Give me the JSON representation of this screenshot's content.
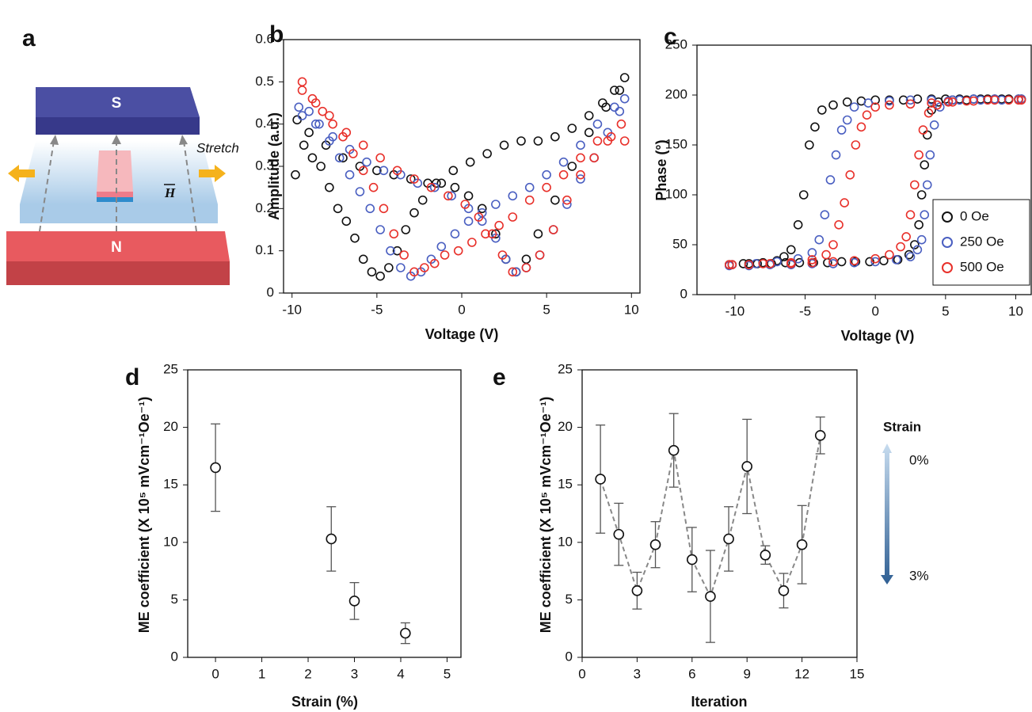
{
  "diagram": {
    "panel_label": "a",
    "labels": [
      "S",
      "N",
      "Stretch",
      "H"
    ]
  },
  "chart_data": [
    {
      "type": "scatter",
      "panel_label": "b",
      "x_label": "Voltage (V)",
      "y_label": "Amplitude (a.u.)",
      "xlim": [
        -10.5,
        10.5
      ],
      "xticks": [
        -10,
        -5,
        0,
        5,
        10
      ],
      "ylim": [
        0,
        0.6
      ],
      "yticks": [
        0,
        0.1,
        0.2,
        0.3,
        0.4,
        0.5,
        0.6
      ],
      "grid": false,
      "series": [
        {
          "color": "#111111",
          "x": [
            -9.8,
            -9.3,
            -8.8,
            -8.3,
            -7.8,
            -7.3,
            -6.8,
            -6.3,
            -5.8,
            -5.3,
            -4.8,
            -4.3,
            -3.8,
            -3.3,
            -2.8,
            -2.3,
            -1.5,
            -0.5,
            0.5,
            1.5,
            2.5,
            3.5,
            4.5,
            5.5,
            6.5,
            7.5,
            8.3,
            9.0,
            9.6,
            9.3,
            8.5,
            7.5,
            6.5,
            5.5,
            4.5,
            3.8,
            3.2,
            2.6,
            2.0,
            1.2,
            0.4,
            -0.4,
            -1.2,
            -2.0,
            -3.0,
            -4.0,
            -5.0,
            -6.0,
            -7.0,
            -8.0,
            -9.0,
            -9.7
          ],
          "values": [
            0.28,
            0.35,
            0.32,
            0.3,
            0.25,
            0.2,
            0.17,
            0.13,
            0.08,
            0.05,
            0.04,
            0.06,
            0.1,
            0.15,
            0.19,
            0.22,
            0.26,
            0.29,
            0.31,
            0.33,
            0.35,
            0.36,
            0.36,
            0.37,
            0.39,
            0.42,
            0.45,
            0.48,
            0.51,
            0.48,
            0.44,
            0.38,
            0.3,
            0.22,
            0.14,
            0.08,
            0.05,
            0.08,
            0.14,
            0.2,
            0.23,
            0.25,
            0.26,
            0.26,
            0.27,
            0.28,
            0.29,
            0.3,
            0.32,
            0.35,
            0.38,
            0.41
          ]
        },
        {
          "color": "#4a5fc1",
          "x": [
            -9.6,
            -9,
            -8.4,
            -7.8,
            -7.2,
            -6.6,
            -6,
            -5.4,
            -4.8,
            -4.2,
            -3.6,
            -3,
            -2.4,
            -1.8,
            -1.2,
            -0.4,
            0.4,
            1.2,
            2,
            3,
            4,
            5,
            6,
            7,
            8,
            9,
            9.6,
            9.3,
            8.6,
            7.8,
            7,
            6.2,
            5.4,
            4.6,
            3.8,
            3.2,
            2.6,
            2,
            1.2,
            0.4,
            -0.6,
            -1.6,
            -2.6,
            -3.6,
            -4.6,
            -5.6,
            -6.6,
            -7.6,
            -8.6,
            -9.4
          ],
          "values": [
            0.44,
            0.43,
            0.4,
            0.36,
            0.32,
            0.28,
            0.24,
            0.2,
            0.15,
            0.1,
            0.06,
            0.04,
            0.05,
            0.08,
            0.11,
            0.14,
            0.17,
            0.19,
            0.21,
            0.23,
            0.25,
            0.28,
            0.31,
            0.35,
            0.4,
            0.44,
            0.46,
            0.43,
            0.38,
            0.32,
            0.27,
            0.21,
            0.15,
            0.09,
            0.06,
            0.05,
            0.08,
            0.13,
            0.17,
            0.2,
            0.23,
            0.25,
            0.26,
            0.28,
            0.29,
            0.31,
            0.34,
            0.37,
            0.4,
            0.42
          ]
        },
        {
          "color": "#e8302a",
          "x": [
            -9.4,
            -8.8,
            -8.2,
            -7.6,
            -7,
            -6.4,
            -5.8,
            -5.2,
            -4.6,
            -4,
            -3.4,
            -2.8,
            -2.2,
            -1.6,
            -1,
            -0.2,
            0.6,
            1.4,
            2.2,
            3,
            4,
            5,
            6,
            7,
            8,
            8.8,
            9.6,
            9.4,
            8.6,
            7.8,
            7,
            6.2,
            5.4,
            4.6,
            3.8,
            3,
            2.4,
            1.8,
            1,
            0.2,
            -0.8,
            -1.8,
            -2.8,
            -3.8,
            -4.8,
            -5.8,
            -6.8,
            -7.8,
            -8.6,
            -9.4
          ],
          "values": [
            0.5,
            0.46,
            0.43,
            0.4,
            0.37,
            0.33,
            0.29,
            0.25,
            0.2,
            0.14,
            0.09,
            0.05,
            0.06,
            0.07,
            0.09,
            0.1,
            0.12,
            0.14,
            0.16,
            0.18,
            0.22,
            0.25,
            0.28,
            0.32,
            0.36,
            0.37,
            0.36,
            0.4,
            0.36,
            0.32,
            0.28,
            0.22,
            0.15,
            0.09,
            0.06,
            0.05,
            0.09,
            0.14,
            0.18,
            0.21,
            0.23,
            0.25,
            0.27,
            0.29,
            0.32,
            0.35,
            0.38,
            0.42,
            0.45,
            0.48
          ]
        }
      ]
    },
    {
      "type": "scatter",
      "panel_label": "c",
      "x_label": "Voltage (V)",
      "y_label": "Phase (°)",
      "legend": "lower right",
      "xlim": [
        -12.7,
        11.1
      ],
      "xticks": [
        -10,
        -5,
        0,
        5,
        10
      ],
      "ylim": [
        0,
        250
      ],
      "yticks": [
        0,
        50,
        100,
        150,
        200,
        250
      ],
      "grid": false,
      "series": [
        {
          "name": "0 Oe",
          "color": "#111111",
          "x": [
            -10.4,
            -9.4,
            -8.4,
            -7.4,
            -6.4,
            -5.4,
            -4.4,
            -3.4,
            -2.4,
            -1.4,
            -0.4,
            0.6,
            1.6,
            2.4,
            2.8,
            3.1,
            3.3,
            3.5,
            3.7,
            4,
            4.5,
            5.5,
            6.5,
            7.5,
            8.5,
            9.5,
            10.4,
            10.2,
            9,
            8,
            7,
            6,
            5,
            4,
            3,
            2,
            1,
            0,
            -1,
            -2,
            -3,
            -3.8,
            -4.3,
            -4.7,
            -5.1,
            -5.5,
            -6,
            -6.5,
            -7,
            -8,
            -9,
            -10.2
          ],
          "values": [
            30,
            31,
            31,
            31,
            32,
            32,
            32,
            32,
            33,
            33,
            33,
            34,
            35,
            40,
            50,
            70,
            100,
            130,
            160,
            185,
            193,
            195,
            195,
            196,
            196,
            196,
            196,
            196,
            196,
            196,
            196,
            196,
            196,
            196,
            196,
            195,
            195,
            195,
            194,
            193,
            190,
            185,
            168,
            150,
            100,
            70,
            45,
            38,
            34,
            32,
            31,
            30
          ]
        },
        {
          "name": "250 Oe",
          "color": "#4a5fc1",
          "x": [
            -10.4,
            -9,
            -7.5,
            -6,
            -4.5,
            -3,
            -1.5,
            0,
            1.5,
            2.5,
            3,
            3.3,
            3.5,
            3.7,
            3.9,
            4.2,
            4.6,
            5.2,
            6,
            7.5,
            9,
            10.4,
            10.2,
            8.5,
            7,
            5.5,
            4,
            2.5,
            1,
            -0.5,
            -1.5,
            -2,
            -2.4,
            -2.8,
            -3.2,
            -3.6,
            -4,
            -4.5,
            -5.5,
            -7,
            -8.5,
            -10.2
          ],
          "values": [
            29,
            29,
            30,
            30,
            31,
            31,
            32,
            33,
            35,
            38,
            45,
            55,
            80,
            110,
            140,
            170,
            188,
            194,
            195,
            195,
            195,
            196,
            196,
            196,
            196,
            195,
            195,
            195,
            194,
            192,
            188,
            175,
            165,
            140,
            115,
            80,
            55,
            42,
            36,
            33,
            31,
            30
          ]
        },
        {
          "name": "500 Oe",
          "color": "#e8302a",
          "x": [
            -10.4,
            -9,
            -7.5,
            -6,
            -4.5,
            -3,
            -1.5,
            0,
            1,
            1.8,
            2.2,
            2.5,
            2.8,
            3.1,
            3.4,
            3.8,
            4.4,
            5.2,
            6.5,
            8,
            9.5,
            10.4,
            10.2,
            8.5,
            7,
            5.5,
            4,
            2.5,
            1,
            0,
            -0.6,
            -1,
            -1.4,
            -1.8,
            -2.2,
            -2.6,
            -3,
            -3.5,
            -4.5,
            -6,
            -8,
            -10.2
          ],
          "values": [
            30,
            30,
            31,
            31,
            32,
            33,
            34,
            36,
            40,
            48,
            58,
            80,
            110,
            140,
            165,
            182,
            190,
            193,
            194,
            195,
            195,
            195,
            195,
            195,
            194,
            193,
            192,
            191,
            190,
            188,
            180,
            168,
            150,
            120,
            92,
            70,
            50,
            40,
            35,
            32,
            31,
            30
          ]
        }
      ]
    },
    {
      "type": "scatter",
      "panel_label": "d",
      "x_label": "Strain (%)",
      "y_label": "ME coefficient (X 10⁵ mVcm⁻¹Oe⁻¹)",
      "xlim": [
        -0.6,
        5.3
      ],
      "xticks": [
        0,
        1,
        2,
        3,
        4,
        5
      ],
      "ylim": [
        0,
        25
      ],
      "yticks": [
        0,
        5,
        10,
        15,
        20,
        25
      ],
      "grid": false,
      "series": [
        {
          "color": "#111111",
          "x": [
            0,
            2.5,
            3,
            4.1
          ],
          "values": [
            16.5,
            10.3,
            4.9,
            2.1
          ],
          "errors": [
            3.8,
            2.8,
            1.6,
            0.9
          ]
        }
      ]
    },
    {
      "type": "line",
      "panel_label": "e",
      "x_label": "Iteration",
      "y_label": "ME coefficient (X 10⁵ mVcm⁻¹Oe⁻¹)",
      "annotations": [
        "Strain",
        "0%",
        "3%"
      ],
      "xlim": [
        0,
        15
      ],
      "xticks": [
        0,
        3,
        6,
        9,
        12,
        15
      ],
      "ylim": [
        0,
        25
      ],
      "yticks": [
        0,
        5,
        10,
        15,
        20,
        25
      ],
      "grid": false,
      "series": [
        {
          "color": "#111111",
          "line_color": "#888888",
          "x": [
            1,
            2,
            3,
            4,
            5,
            6,
            7,
            8,
            9,
            10,
            11,
            12,
            13
          ],
          "values": [
            15.5,
            10.7,
            5.8,
            9.8,
            18,
            8.5,
            5.3,
            10.3,
            16.6,
            8.9,
            5.8,
            9.8,
            19.3
          ],
          "errors": [
            4.7,
            2.7,
            1.6,
            2,
            3.2,
            2.8,
            4,
            2.8,
            4.1,
            0.8,
            1.5,
            3.4,
            1.6
          ]
        }
      ]
    }
  ]
}
